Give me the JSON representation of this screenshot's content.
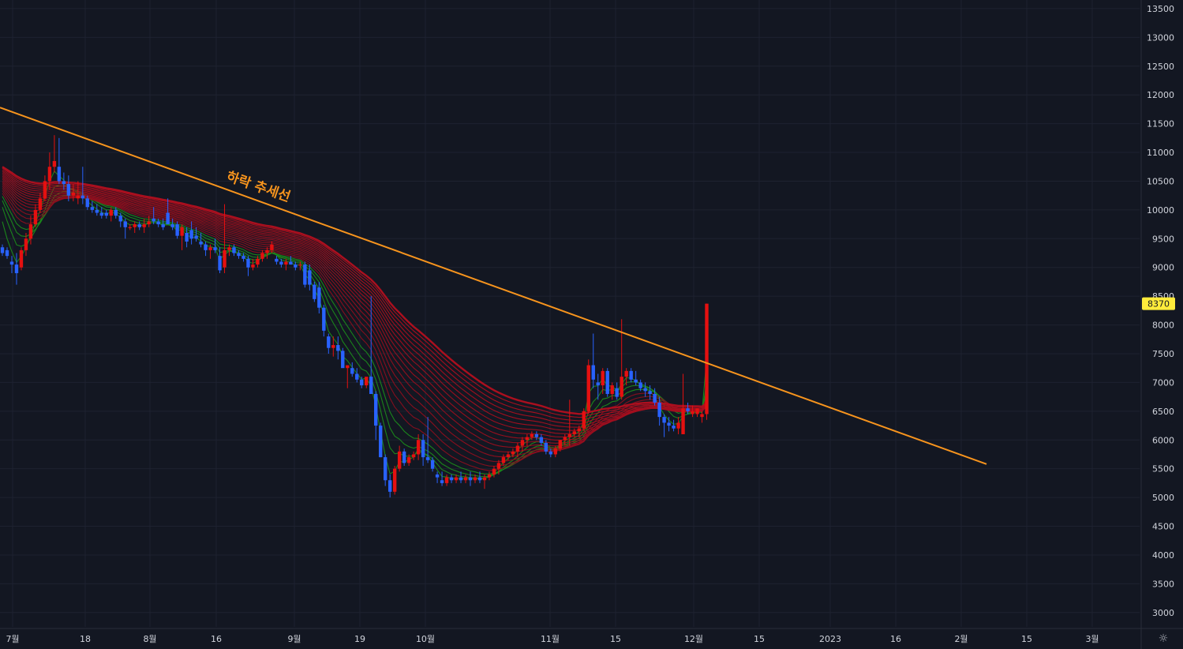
{
  "chart_data": {
    "type": "candlestick",
    "y_axis": {
      "ticks": [
        3000,
        3500,
        4000,
        4500,
        5000,
        5500,
        6000,
        6500,
        7000,
        7500,
        8000,
        8500,
        9000,
        9500,
        10000,
        10500,
        11000,
        11500,
        12000,
        12500,
        13000,
        13500
      ],
      "range": [
        2750,
        13650
      ],
      "position": "right"
    },
    "x_axis": {
      "ticks": [
        "7월",
        "18",
        "8월",
        "16",
        "9월",
        "19",
        "10월",
        "11월",
        "15",
        "12월",
        "15",
        "2023",
        "16",
        "2월",
        "15",
        "3월"
      ]
    },
    "last_price": "8370",
    "last_price_color": "#ffeb3b",
    "candle_colors": {
      "up": "#e51010",
      "down": "#2962ff"
    },
    "ribbon": {
      "fast_color": "#1b8a1b",
      "slow_color": "#b30f1f",
      "description_note": "moving-average ribbon"
    },
    "trendline": {
      "color": "#f7941d",
      "start_value": 11780,
      "end_value": 5580,
      "label": "하락 추세선"
    },
    "ohlc": [
      [
        9350,
        9400,
        9200,
        9250
      ],
      [
        9300,
        9350,
        9150,
        9200
      ],
      [
        9100,
        9200,
        8900,
        9050
      ],
      [
        9050,
        9250,
        8700,
        8900
      ],
      [
        9000,
        9350,
        8950,
        9300
      ],
      [
        9300,
        9600,
        9200,
        9500
      ],
      [
        9500,
        9900,
        9400,
        9750
      ],
      [
        9750,
        10100,
        9700,
        10000
      ],
      [
        10000,
        10300,
        9950,
        10200
      ],
      [
        10200,
        10600,
        10150,
        10500
      ],
      [
        10500,
        11000,
        10350,
        10750
      ],
      [
        10750,
        11300,
        10650,
        10850
      ],
      [
        10750,
        11250,
        10450,
        10500
      ],
      [
        10500,
        10650,
        10350,
        10450
      ],
      [
        10450,
        10600,
        10150,
        10250
      ],
      [
        10250,
        10450,
        10150,
        10300
      ],
      [
        10200,
        10500,
        10100,
        10250
      ],
      [
        10250,
        10750,
        10100,
        10200
      ],
      [
        10200,
        10250,
        10000,
        10050
      ],
      [
        10050,
        10150,
        9950,
        10000
      ],
      [
        10000,
        10100,
        9900,
        9950
      ],
      [
        9950,
        10050,
        9850,
        9900
      ],
      [
        9950,
        10000,
        9850,
        9900
      ],
      [
        9900,
        10050,
        9800,
        10000
      ],
      [
        10000,
        10050,
        9850,
        9900
      ],
      [
        9900,
        9950,
        9700,
        9800
      ],
      [
        9800,
        9850,
        9500,
        9700
      ],
      [
        9700,
        9750,
        9650,
        9700
      ],
      [
        9700,
        9800,
        9600,
        9750
      ],
      [
        9750,
        9800,
        9650,
        9700
      ],
      [
        9700,
        9850,
        9600,
        9750
      ],
      [
        9750,
        9900,
        9700,
        9800
      ],
      [
        9850,
        10050,
        9750,
        9800
      ],
      [
        9800,
        9850,
        9700,
        9750
      ],
      [
        9750,
        9850,
        9650,
        9700
      ],
      [
        9950,
        10200,
        9800,
        9750
      ],
      [
        9750,
        9850,
        9650,
        9700
      ],
      [
        9750,
        9800,
        9500,
        9550
      ],
      [
        9550,
        9750,
        9300,
        9700
      ],
      [
        9600,
        9700,
        9350,
        9450
      ],
      [
        9650,
        9800,
        9400,
        9500
      ],
      [
        9550,
        9700,
        9450,
        9500
      ],
      [
        9450,
        9600,
        9350,
        9400
      ],
      [
        9400,
        9450,
        9200,
        9300
      ],
      [
        9300,
        9400,
        9150,
        9350
      ],
      [
        9350,
        9500,
        9250,
        9300
      ],
      [
        9200,
        9350,
        8900,
        8950
      ],
      [
        9000,
        10100,
        8900,
        9300
      ],
      [
        9300,
        9400,
        9200,
        9350
      ],
      [
        9350,
        9400,
        9200,
        9250
      ],
      [
        9250,
        9300,
        9150,
        9200
      ],
      [
        9200,
        9250,
        9100,
        9150
      ],
      [
        9150,
        9200,
        8850,
        9000
      ],
      [
        9000,
        9150,
        8950,
        9050
      ],
      [
        9050,
        9200,
        9000,
        9150
      ],
      [
        9150,
        9300,
        9100,
        9250
      ],
      [
        9250,
        9350,
        9150,
        9300
      ],
      [
        9300,
        9450,
        9250,
        9400
      ],
      [
        9150,
        9200,
        9050,
        9100
      ],
      [
        9100,
        9150,
        9000,
        9050
      ],
      [
        9050,
        9150,
        8950,
        9100
      ],
      [
        9100,
        9200,
        9050,
        9050
      ],
      [
        9050,
        9100,
        8950,
        9000
      ],
      [
        9050,
        9100,
        8950,
        9050
      ],
      [
        9050,
        9100,
        8650,
        8700
      ],
      [
        8950,
        9050,
        8600,
        8700
      ],
      [
        8700,
        8750,
        8400,
        8450
      ],
      [
        8650,
        8750,
        8200,
        8300
      ],
      [
        8300,
        8350,
        7800,
        7900
      ],
      [
        7800,
        7850,
        7500,
        7600
      ],
      [
        7600,
        7800,
        7450,
        7650
      ],
      [
        7650,
        7800,
        7400,
        7550
      ],
      [
        7550,
        7600,
        7300,
        7250
      ],
      [
        7250,
        7300,
        6900,
        7300
      ],
      [
        7250,
        7350,
        7100,
        7150
      ],
      [
        7150,
        7250,
        7000,
        7050
      ],
      [
        7050,
        7100,
        6900,
        6950
      ],
      [
        6950,
        7000,
        6900,
        7100
      ],
      [
        7100,
        8500,
        6900,
        6800
      ],
      [
        6800,
        6850,
        6000,
        6250
      ],
      [
        6250,
        6300,
        5700,
        5700
      ],
      [
        5700,
        5750,
        5200,
        5300
      ],
      [
        5300,
        5400,
        5000,
        5100
      ],
      [
        5100,
        5550,
        5050,
        5500
      ],
      [
        5500,
        5900,
        5450,
        5800
      ],
      [
        5800,
        5850,
        5550,
        5600
      ],
      [
        5600,
        5750,
        5550,
        5700
      ],
      [
        5700,
        5800,
        5650,
        5750
      ],
      [
        5750,
        6100,
        5650,
        6000
      ],
      [
        6000,
        6100,
        5550,
        5700
      ],
      [
        5700,
        6400,
        5600,
        5650
      ],
      [
        5650,
        5700,
        5450,
        5500
      ],
      [
        5400,
        5450,
        5250,
        5350
      ],
      [
        5300,
        5450,
        5200,
        5250
      ],
      [
        5250,
        5400,
        5200,
        5350
      ],
      [
        5350,
        5400,
        5250,
        5300
      ],
      [
        5300,
        5400,
        5250,
        5350
      ],
      [
        5350,
        5450,
        5250,
        5300
      ],
      [
        5300,
        5400,
        5250,
        5350
      ],
      [
        5350,
        5450,
        5200,
        5300
      ],
      [
        5300,
        5400,
        5250,
        5350
      ],
      [
        5350,
        5450,
        5250,
        5300
      ],
      [
        5300,
        5400,
        5150,
        5350
      ],
      [
        5350,
        5450,
        5300,
        5400
      ],
      [
        5400,
        5550,
        5350,
        5500
      ],
      [
        5500,
        5650,
        5400,
        5600
      ],
      [
        5600,
        5750,
        5550,
        5700
      ],
      [
        5700,
        5800,
        5650,
        5750
      ],
      [
        5750,
        5850,
        5700,
        5800
      ],
      [
        5800,
        5950,
        5700,
        5900
      ],
      [
        5900,
        6050,
        5800,
        6000
      ],
      [
        6000,
        6100,
        5900,
        6050
      ],
      [
        6050,
        6150,
        6000,
        6100
      ],
      [
        6100,
        6150,
        6000,
        6050
      ],
      [
        6050,
        6100,
        5900,
        5950
      ],
      [
        5950,
        6000,
        5750,
        5800
      ],
      [
        5800,
        5850,
        5700,
        5750
      ],
      [
        5750,
        5900,
        5700,
        5850
      ],
      [
        5850,
        6000,
        5800,
        6000
      ],
      [
        6000,
        6100,
        5900,
        6050
      ],
      [
        6050,
        6700,
        5900,
        6100
      ],
      [
        6100,
        6200,
        6050,
        6150
      ],
      [
        6150,
        6250,
        6050,
        6200
      ],
      [
        6200,
        6550,
        6150,
        6500
      ],
      [
        6500,
        7400,
        6450,
        7300
      ],
      [
        7300,
        7850,
        6900,
        7050
      ],
      [
        7000,
        7150,
        6700,
        6950
      ],
      [
        6950,
        7250,
        6800,
        7200
      ],
      [
        7200,
        7250,
        6750,
        6800
      ],
      [
        6800,
        7000,
        6700,
        6950
      ],
      [
        6900,
        7000,
        6700,
        6750
      ],
      [
        6750,
        8100,
        6700,
        7100
      ],
      [
        7100,
        7250,
        6950,
        7200
      ],
      [
        7200,
        7250,
        7000,
        7050
      ],
      [
        7050,
        7200,
        6950,
        7000
      ],
      [
        7000,
        7050,
        6850,
        6900
      ],
      [
        6900,
        7000,
        6750,
        6850
      ],
      [
        6850,
        6950,
        6700,
        6800
      ],
      [
        6800,
        6900,
        6600,
        6650
      ],
      [
        6650,
        6750,
        6250,
        6400
      ],
      [
        6400,
        6450,
        6050,
        6300
      ],
      [
        6300,
        6400,
        6150,
        6250
      ],
      [
        6250,
        6350,
        6150,
        6200
      ],
      [
        6200,
        6400,
        6100,
        6300
      ],
      [
        6100,
        7150,
        6100,
        6550
      ],
      [
        6550,
        6650,
        6450,
        6500
      ],
      [
        6450,
        6600,
        6400,
        6500
      ],
      [
        6450,
        6550,
        6400,
        6550
      ],
      [
        6400,
        6500,
        6300,
        6450
      ],
      [
        6450,
        8370,
        6350,
        8370
      ]
    ]
  }
}
